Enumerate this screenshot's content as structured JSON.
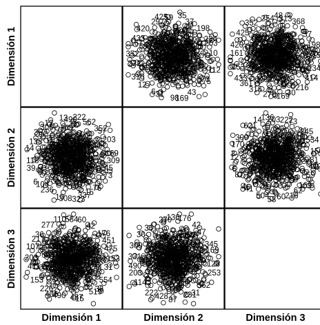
{
  "chart_data": {
    "type": "scatter",
    "variables": [
      "Dimensión 1",
      "Dimensión 2",
      "Dimensión 3"
    ],
    "diagonal": "empty",
    "marker": "open-circle",
    "grid": false,
    "point_labels": {
      "cell_1_2": [
        "59",
        "35",
        "37",
        "198",
        "234",
        "203",
        "10",
        "112",
        "73",
        "275",
        "43",
        "169",
        "98",
        "31",
        "6",
        "12",
        "310",
        "222",
        "352",
        "161",
        "433",
        "420",
        "297",
        "425"
      ],
      "cell_1_3": [
        "48",
        "313",
        "368",
        "37",
        "198",
        "150",
        "234",
        "414",
        "216",
        "30",
        "169",
        "278",
        "316",
        "361",
        "433",
        "153",
        "161",
        "420",
        "425",
        "352",
        "254"
      ],
      "cell_2_1": [
        "490",
        "222",
        "562",
        "352",
        "57",
        "203",
        "169",
        "309",
        "45",
        "73",
        "76",
        "15",
        "337",
        "323",
        "308",
        "10",
        "236",
        "104",
        "6",
        "39",
        "118",
        "14",
        "138",
        "35",
        "306",
        "12",
        "13"
      ],
      "cell_2_3": [
        "203",
        "222",
        "73",
        "31",
        "345",
        "534",
        "150",
        "81",
        "412",
        "59",
        "169",
        "62",
        "216",
        "60",
        "58",
        "504",
        "41",
        "46",
        "8",
        "6",
        "12",
        "3",
        "170",
        "309",
        "621",
        "14",
        "136"
      ],
      "cell_3_1": [
        "584",
        "60",
        "42",
        "176",
        "451",
        "475",
        "153",
        "31",
        "554",
        "36",
        "519",
        "15",
        "487",
        "490",
        "406",
        "226",
        "153",
        "411",
        "203",
        "107",
        "217",
        "36",
        "277",
        "110"
      ],
      "cell_3_2": [
        "136",
        "176",
        "42",
        "47",
        "345",
        "169",
        "128",
        "253",
        "562",
        "31",
        "231",
        "87",
        "428",
        "222",
        "114",
        "203",
        "490",
        "331",
        "309",
        "30",
        "36",
        "270"
      ]
    }
  }
}
